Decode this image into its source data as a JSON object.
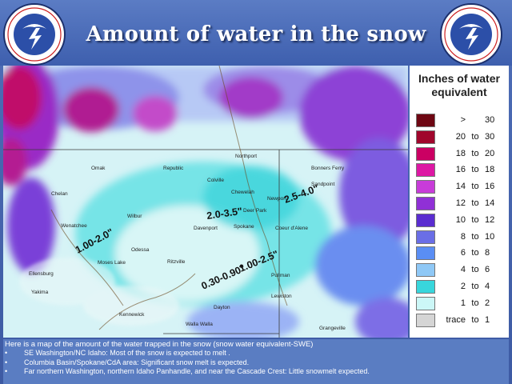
{
  "title": "Amount of water in the snow",
  "logo_text": "NATIONAL WEATHER SERVICE",
  "legend": {
    "title_line1": "Inches of water",
    "title_line2": "equivalent",
    "rows": [
      {
        "color": "#6e0713",
        "a": ">",
        "b": "",
        "c": "30"
      },
      {
        "color": "#a0062c",
        "a": "20",
        "b": "to",
        "c": "30"
      },
      {
        "color": "#cb0063",
        "a": "18",
        "b": "to",
        "c": "20"
      },
      {
        "color": "#dd18a4",
        "a": "16",
        "b": "to",
        "c": "18"
      },
      {
        "color": "#c83cd9",
        "a": "14",
        "b": "to",
        "c": "16"
      },
      {
        "color": "#9030d6",
        "a": "12",
        "b": "to",
        "c": "14"
      },
      {
        "color": "#5a2dd0",
        "a": "10",
        "b": "to",
        "c": "12"
      },
      {
        "color": "#6a6ee6",
        "a": "8",
        "b": "to",
        "c": "10"
      },
      {
        "color": "#5a8ef4",
        "a": "6",
        "b": "to",
        "c": "8"
      },
      {
        "color": "#8fc8f6",
        "a": "4",
        "b": "to",
        "c": "6"
      },
      {
        "color": "#38d6dc",
        "a": "2",
        "b": "to",
        "c": "4"
      },
      {
        "color": "#ccf7f7",
        "a": "1",
        "b": "to",
        "c": "2"
      },
      {
        "color": "#d5d5d5",
        "a": "trace",
        "b": "to",
        "c": "1"
      }
    ]
  },
  "map": {
    "region_labels": [
      "2.0-3.5\"",
      "2.5-4.0\"",
      "1.00-2.0\"",
      "1.00-2.5\"",
      "0.30-0.90\""
    ],
    "places": [
      "Northport",
      "Colville",
      "Republic",
      "Chewelah",
      "Newport",
      "Deer Park",
      "Davenport",
      "Spokane",
      "Coeur d'Alene",
      "Wilbur",
      "Odessa",
      "Ritzville",
      "Moses Lake",
      "Ellensburg",
      "Yakima",
      "Pullman",
      "Lewiston",
      "Dayton",
      "Walla Walla",
      "Kennewick",
      "Grangeville",
      "Omak",
      "Chelan",
      "Wenatchee",
      "Sandpoint",
      "Bonners Ferry"
    ]
  },
  "footer": {
    "intro": "Here is a map of the amount of the water trapped in the snow (snow water equivalent-SWE)",
    "bullets": [
      "SE Washington/NC Idaho: Most of the snow is expected to melt .",
      "Columbia Basin/Spokane/CdA area: Significant snow melt is expected.",
      "Far northern Washington, northern Idaho Panhandle, and near the Cascade Crest: Little snowmelt expected."
    ]
  }
}
